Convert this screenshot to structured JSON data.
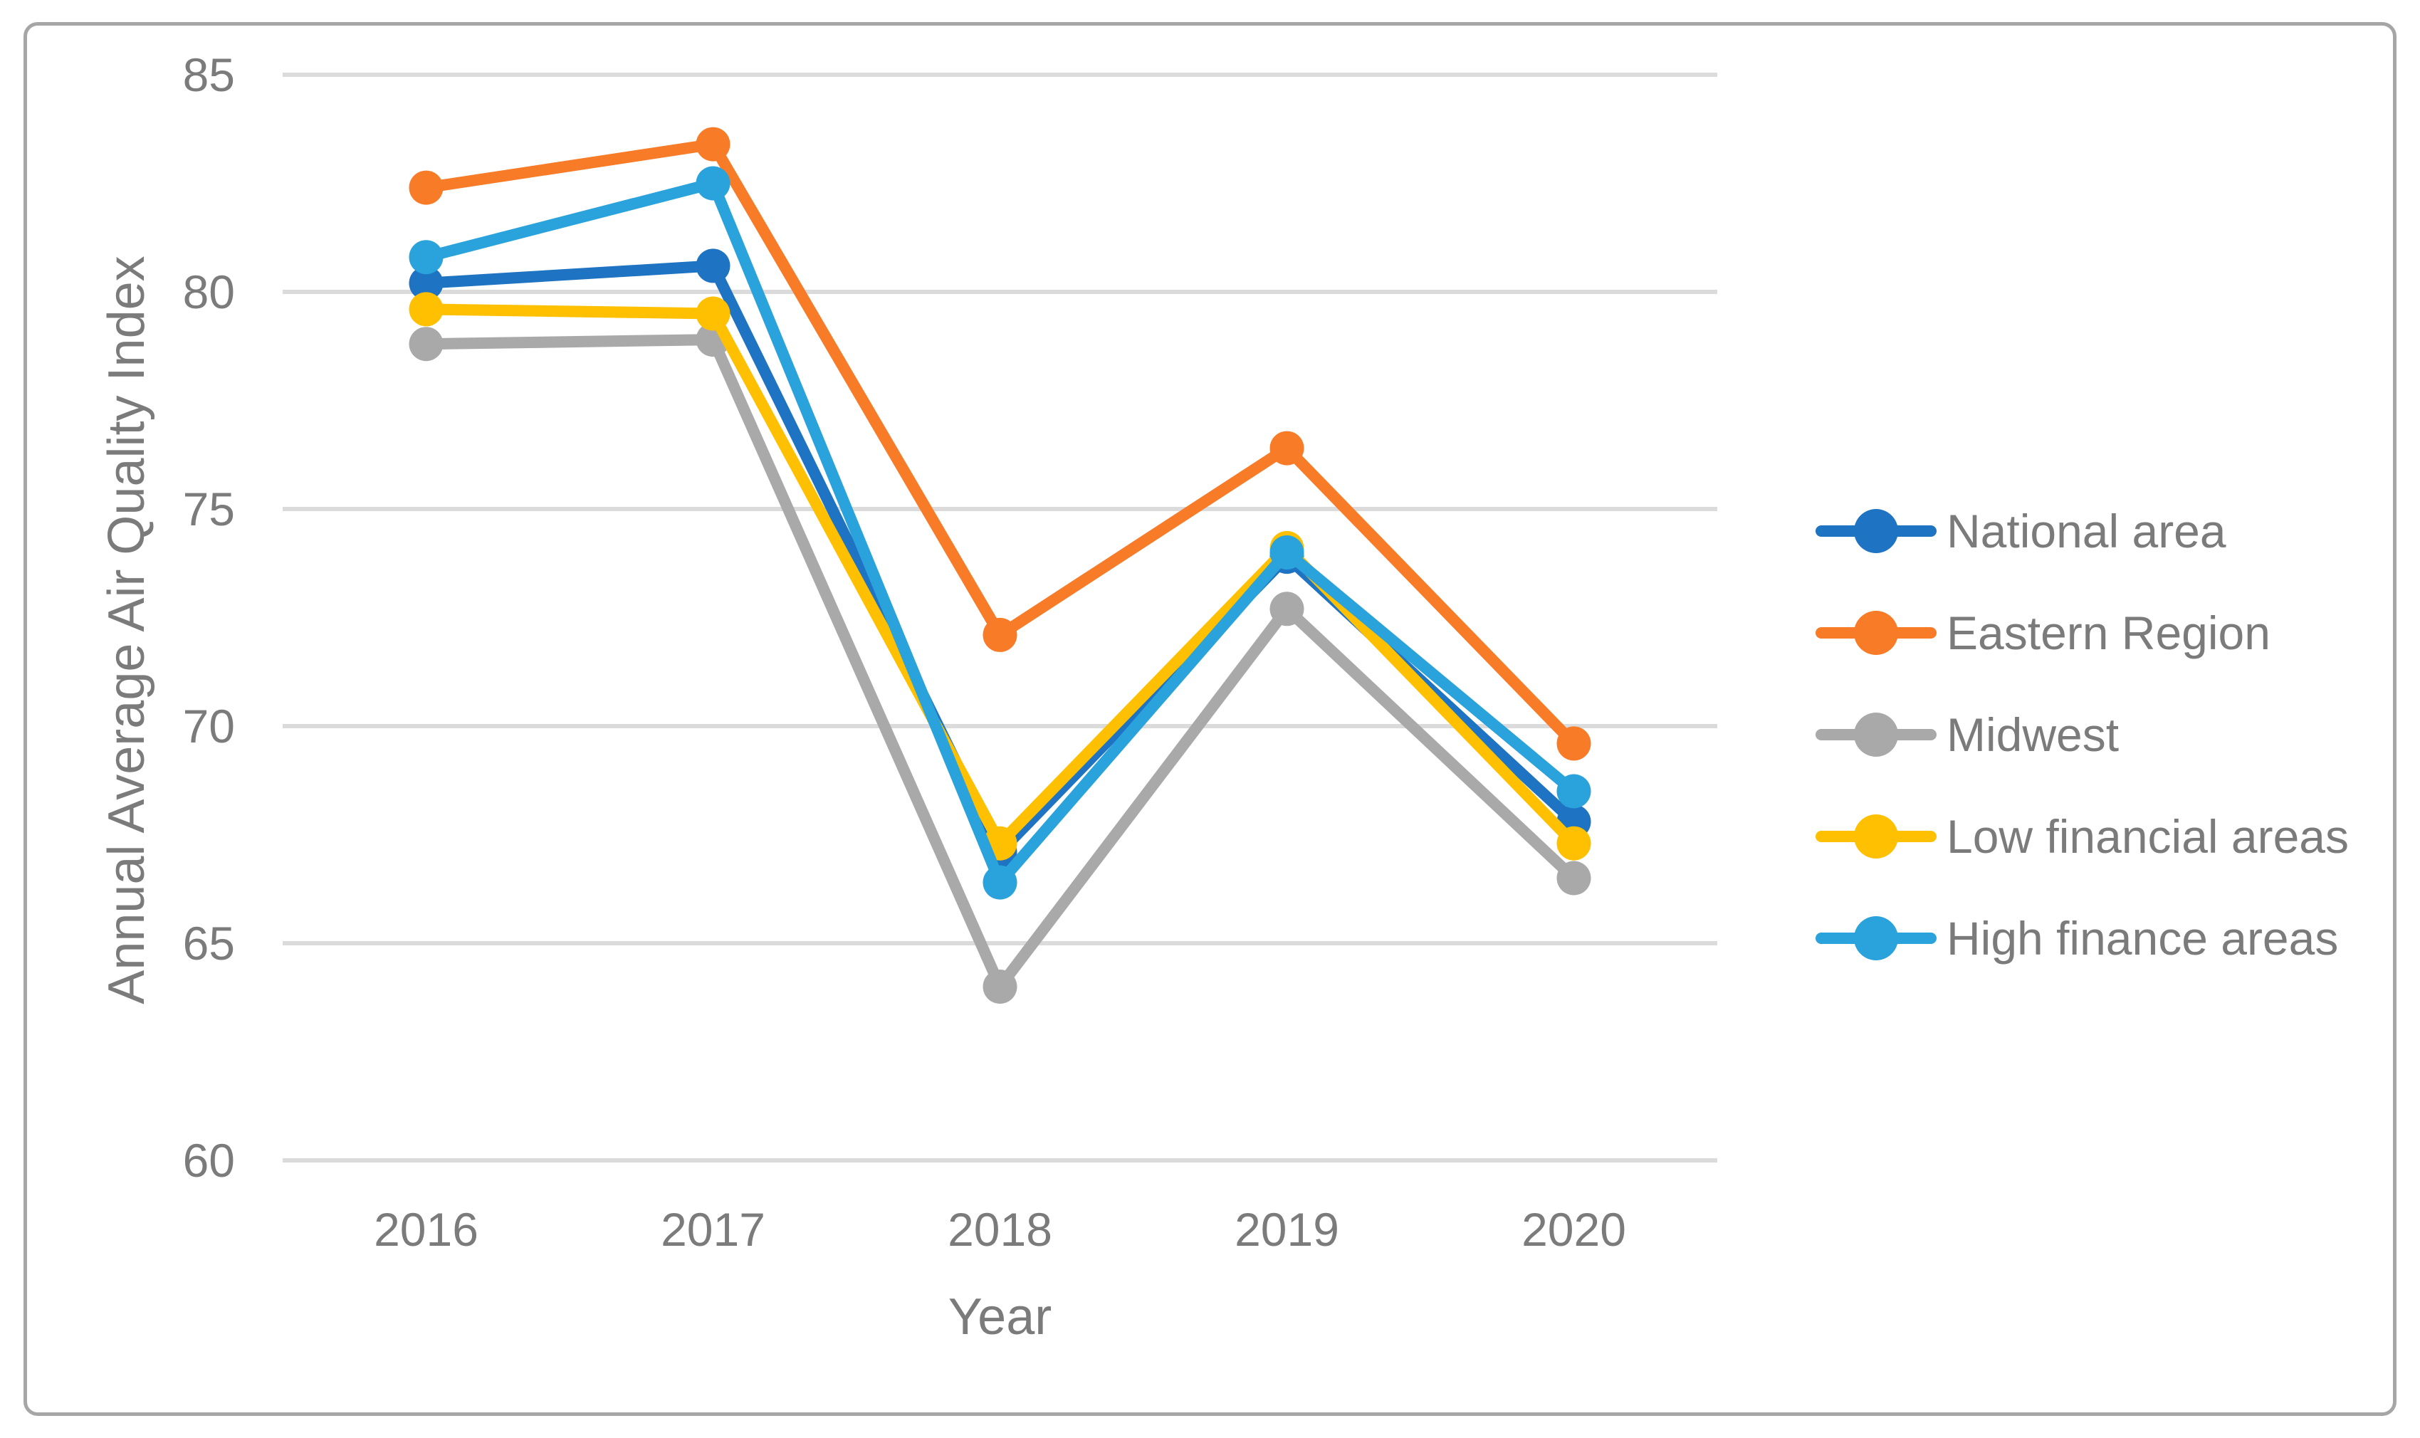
{
  "chart_data": {
    "type": "line",
    "title": "",
    "categories": [
      "2016",
      "2017",
      "2018",
      "2019",
      "2020"
    ],
    "series": [
      {
        "name": "National area",
        "color": "#1e73c2",
        "values": [
          80.2,
          80.6,
          67.1,
          73.9,
          67.8
        ]
      },
      {
        "name": "Eastern Region",
        "color": "#f87b28",
        "values": [
          82.4,
          83.4,
          72.1,
          76.4,
          69.6
        ]
      },
      {
        "name": "Midwest",
        "color": "#a9a9a9",
        "values": [
          78.8,
          78.9,
          64.0,
          72.7,
          66.5
        ]
      },
      {
        "name": "Low financial areas",
        "color": "#fec000",
        "values": [
          79.6,
          79.5,
          67.3,
          74.1,
          67.3
        ]
      },
      {
        "name": "High finance areas",
        "color": "#2aa2dc",
        "values": [
          80.8,
          82.5,
          66.4,
          74.0,
          68.5
        ]
      }
    ],
    "xlabel": "Year",
    "ylabel": "Annual Average Air Quality Index",
    "ylim": [
      60,
      85
    ],
    "yticks": [
      60,
      65,
      70,
      75,
      80,
      85
    ],
    "grid": "horizontal",
    "legend_position": "right",
    "marker": "circle",
    "colors": {
      "gridline": "#dbdbdb",
      "axis_text": "#7b7b7b",
      "frame_border": "#a6a6a6",
      "background": "#ffffff"
    }
  }
}
